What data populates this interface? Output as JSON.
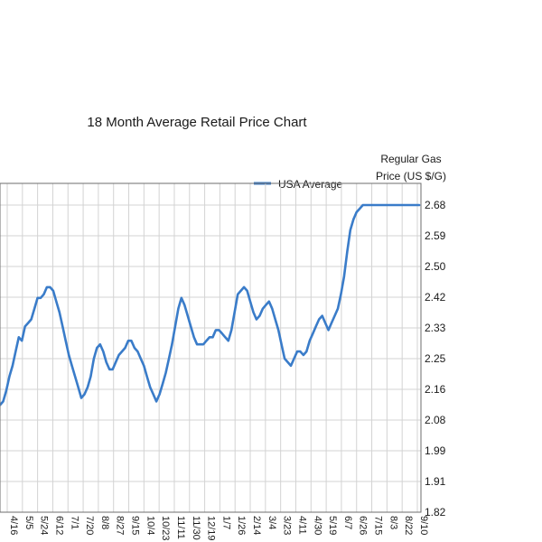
{
  "chart_data": {
    "type": "line",
    "title": "18 Month Average Retail Price Chart",
    "ylabel_line1": "Regular Gas",
    "ylabel_line2": "Price (US $/G)",
    "ylim": [
      1.82,
      2.68
    ],
    "yticks": [
      "2.68",
      "2.59",
      "2.50",
      "2.42",
      "2.33",
      "2.25",
      "2.16",
      "2.08",
      "1.99",
      "1.91",
      "1.82"
    ],
    "xtick_labels": [
      "4/16",
      "5/5",
      "5/24",
      "6/12",
      "7/1",
      "7/20",
      "8/8",
      "8/27",
      "9/15",
      "10/4",
      "10/23",
      "11/11",
      "11/30",
      "12/19",
      "1/7",
      "1/26",
      "2/14",
      "3/4",
      "3/23",
      "4/11",
      "4/30",
      "5/19",
      "6/7",
      "6/26",
      "7/15",
      "8/3",
      "8/22",
      "9/10"
    ],
    "legend_position": "top-right",
    "grid": true,
    "series": [
      {
        "name": "USA Average",
        "color": "#3a7cc9",
        "x": [
          0,
          2,
          4,
          6,
          8,
          10,
          12,
          14,
          16,
          18,
          20,
          22,
          24,
          26,
          28,
          30,
          32,
          34,
          36,
          38,
          40,
          42,
          44,
          46,
          48,
          50,
          52,
          54,
          56,
          58,
          60,
          62,
          64,
          66,
          68,
          70,
          72,
          74,
          76,
          78,
          80,
          82,
          84,
          86,
          88,
          90,
          92,
          94,
          96,
          98,
          100,
          102,
          104,
          106,
          108,
          110,
          112,
          114,
          116,
          118,
          120,
          122,
          124,
          126,
          128,
          130,
          132,
          134,
          136,
          138,
          140,
          142,
          144,
          146,
          148,
          150,
          152,
          154,
          156,
          158,
          160,
          162,
          164,
          166,
          168,
          170,
          172,
          174,
          176,
          178,
          180,
          182,
          184,
          186,
          188,
          190,
          192,
          194,
          196,
          198,
          200,
          202,
          204,
          206,
          208,
          210,
          212,
          214,
          216,
          218,
          220,
          222,
          224,
          226,
          228,
          230,
          232,
          234,
          236,
          238,
          240,
          242,
          244,
          246,
          248,
          250,
          252,
          254,
          256,
          258,
          260,
          262,
          264,
          266,
          268
        ],
        "values": [
          2.12,
          2.13,
          2.16,
          2.2,
          2.23,
          2.27,
          2.31,
          2.3,
          2.34,
          2.35,
          2.36,
          2.39,
          2.42,
          2.42,
          2.43,
          2.45,
          2.45,
          2.44,
          2.41,
          2.38,
          2.34,
          2.3,
          2.26,
          2.23,
          2.2,
          2.17,
          2.14,
          2.15,
          2.17,
          2.2,
          2.25,
          2.28,
          2.29,
          2.27,
          2.24,
          2.22,
          2.22,
          2.24,
          2.26,
          2.27,
          2.28,
          2.3,
          2.3,
          2.28,
          2.27,
          2.25,
          2.23,
          2.2,
          2.17,
          2.15,
          2.13,
          2.15,
          2.18,
          2.21,
          2.25,
          2.29,
          2.34,
          2.39,
          2.42,
          2.4,
          2.37,
          2.34,
          2.31,
          2.29,
          2.29,
          2.29,
          2.3,
          2.31,
          2.31,
          2.33,
          2.33,
          2.32,
          2.31,
          2.3,
          2.33,
          2.38,
          2.43,
          2.44,
          2.45,
          2.44,
          2.41,
          2.38,
          2.36,
          2.37,
          2.39,
          2.4,
          2.41,
          2.39,
          2.36,
          2.33,
          2.29,
          2.25,
          2.24,
          2.23,
          2.25,
          2.27,
          2.27,
          2.26,
          2.27,
          2.3,
          2.32,
          2.34,
          2.36,
          2.37,
          2.35,
          2.33,
          2.35,
          2.37,
          2.39,
          2.43,
          2.48,
          2.55,
          2.61,
          2.64,
          2.66,
          2.67,
          2.68,
          2.68,
          2.68,
          2.68,
          2.68,
          2.68,
          2.68,
          2.68,
          2.68,
          2.68,
          2.68,
          2.68,
          2.68,
          2.68,
          2.68,
          2.68,
          2.68,
          2.68,
          2.68
        ]
      }
    ]
  }
}
